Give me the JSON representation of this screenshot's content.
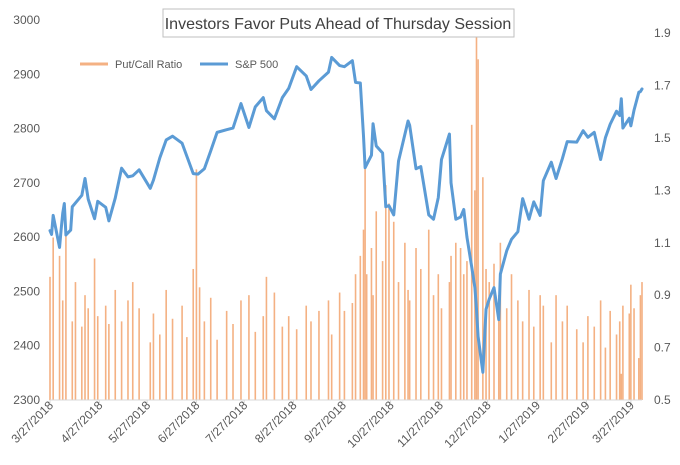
{
  "chart_data": {
    "type": "bar+line",
    "title": "Investors Favor Puts Ahead of Thursday Session",
    "legend": {
      "position": "top-left",
      "items": [
        "Put/Call Ratio",
        "S&P 500"
      ]
    },
    "colors": {
      "ratio_bars": "#F4B183",
      "sp500_line": "#5B9BD5",
      "title_border": "#BFBFBF",
      "text": "#595959"
    },
    "grid": false,
    "x_range": [
      "2018-03-27",
      "2019-04-03"
    ],
    "x_tick_labels": [
      "3/27/2018",
      "4/27/2018",
      "5/27/2018",
      "6/27/2018",
      "7/27/2018",
      "8/27/2018",
      "9/27/2018",
      "10/27/2018",
      "11/27/2018",
      "12/27/2018",
      "1/27/2019",
      "2/27/2019",
      "3/27/2019"
    ],
    "y_left": {
      "series": "S&P 500",
      "range": [
        2300,
        3000
      ],
      "ticks": [
        "2300",
        "2400",
        "2500",
        "2600",
        "2700",
        "2800",
        "2900",
        "3000"
      ]
    },
    "y_right": {
      "series": "Put/Call Ratio",
      "range": [
        0.5,
        1.95
      ],
      "ticks": [
        "0.5",
        "0.7",
        "0.9",
        "1.1",
        "1.3",
        "1.5",
        "1.7",
        "1.9"
      ]
    },
    "series": [
      {
        "name": "S&P 500",
        "type": "line",
        "axis": "left",
        "points": [
          [
            "2018-03-27",
            2612
          ],
          [
            "2018-03-28",
            2605
          ],
          [
            "2018-03-29",
            2640
          ],
          [
            "2018-04-02",
            2581
          ],
          [
            "2018-04-03",
            2614
          ],
          [
            "2018-04-04",
            2644
          ],
          [
            "2018-04-05",
            2662
          ],
          [
            "2018-04-06",
            2604
          ],
          [
            "2018-04-09",
            2613
          ],
          [
            "2018-04-10",
            2656
          ],
          [
            "2018-04-12",
            2663
          ],
          [
            "2018-04-16",
            2677
          ],
          [
            "2018-04-18",
            2708
          ],
          [
            "2018-04-20",
            2670
          ],
          [
            "2018-04-24",
            2634
          ],
          [
            "2018-04-26",
            2666
          ],
          [
            "2018-05-01",
            2655
          ],
          [
            "2018-05-03",
            2630
          ],
          [
            "2018-05-07",
            2672
          ],
          [
            "2018-05-11",
            2727
          ],
          [
            "2018-05-15",
            2711
          ],
          [
            "2018-05-18",
            2713
          ],
          [
            "2018-05-22",
            2724
          ],
          [
            "2018-05-29",
            2690
          ],
          [
            "2018-05-31",
            2705
          ],
          [
            "2018-06-04",
            2746
          ],
          [
            "2018-06-08",
            2779
          ],
          [
            "2018-06-12",
            2786
          ],
          [
            "2018-06-18",
            2773
          ],
          [
            "2018-06-21",
            2749
          ],
          [
            "2018-06-25",
            2717
          ],
          [
            "2018-06-28",
            2716
          ],
          [
            "2018-07-02",
            2726
          ],
          [
            "2018-07-06",
            2759
          ],
          [
            "2018-07-10",
            2793
          ],
          [
            "2018-07-16",
            2798
          ],
          [
            "2018-07-20",
            2801
          ],
          [
            "2018-07-25",
            2846
          ],
          [
            "2018-07-30",
            2802
          ],
          [
            "2018-08-03",
            2840
          ],
          [
            "2018-08-08",
            2857
          ],
          [
            "2018-08-10",
            2833
          ],
          [
            "2018-08-15",
            2818
          ],
          [
            "2018-08-20",
            2857
          ],
          [
            "2018-08-24",
            2874
          ],
          [
            "2018-08-29",
            2914
          ],
          [
            "2018-09-04",
            2897
          ],
          [
            "2018-09-07",
            2872
          ],
          [
            "2018-09-12",
            2888
          ],
          [
            "2018-09-18",
            2904
          ],
          [
            "2018-09-20",
            2931
          ],
          [
            "2018-09-25",
            2916
          ],
          [
            "2018-09-28",
            2914
          ],
          [
            "2018-10-03",
            2925
          ],
          [
            "2018-10-05",
            2885
          ],
          [
            "2018-10-08",
            2884
          ],
          [
            "2018-10-10",
            2786
          ],
          [
            "2018-10-11",
            2728
          ],
          [
            "2018-10-15",
            2751
          ],
          [
            "2018-10-16",
            2809
          ],
          [
            "2018-10-18",
            2768
          ],
          [
            "2018-10-22",
            2755
          ],
          [
            "2018-10-24",
            2656
          ],
          [
            "2018-10-26",
            2658
          ],
          [
            "2018-10-29",
            2641
          ],
          [
            "2018-11-01",
            2740
          ],
          [
            "2018-11-07",
            2814
          ],
          [
            "2018-11-08",
            2806
          ],
          [
            "2018-11-12",
            2726
          ],
          [
            "2018-11-15",
            2730
          ],
          [
            "2018-11-20",
            2641
          ],
          [
            "2018-11-23",
            2633
          ],
          [
            "2018-11-26",
            2673
          ],
          [
            "2018-11-28",
            2743
          ],
          [
            "2018-12-03",
            2790
          ],
          [
            "2018-12-04",
            2700
          ],
          [
            "2018-12-07",
            2633
          ],
          [
            "2018-12-10",
            2637
          ],
          [
            "2018-12-12",
            2651
          ],
          [
            "2018-12-14",
            2600
          ],
          [
            "2018-12-17",
            2545
          ],
          [
            "2018-12-19",
            2507
          ],
          [
            "2018-12-20",
            2467
          ],
          [
            "2018-12-21",
            2417
          ],
          [
            "2018-12-24",
            2351
          ],
          [
            "2018-12-26",
            2467
          ],
          [
            "2018-12-28",
            2486
          ],
          [
            "2018-12-31",
            2507
          ],
          [
            "2019-01-03",
            2448
          ],
          [
            "2019-01-04",
            2532
          ],
          [
            "2019-01-08",
            2575
          ],
          [
            "2019-01-11",
            2596
          ],
          [
            "2019-01-15",
            2610
          ],
          [
            "2019-01-18",
            2671
          ],
          [
            "2019-01-22",
            2633
          ],
          [
            "2019-01-25",
            2665
          ],
          [
            "2019-01-29",
            2640
          ],
          [
            "2019-01-31",
            2704
          ],
          [
            "2019-02-05",
            2738
          ],
          [
            "2019-02-08",
            2708
          ],
          [
            "2019-02-12",
            2745
          ],
          [
            "2019-02-15",
            2776
          ],
          [
            "2019-02-21",
            2775
          ],
          [
            "2019-02-25",
            2796
          ],
          [
            "2019-02-28",
            2784
          ],
          [
            "2019-03-04",
            2793
          ],
          [
            "2019-03-08",
            2743
          ],
          [
            "2019-03-11",
            2783
          ],
          [
            "2019-03-14",
            2808
          ],
          [
            "2019-03-18",
            2832
          ],
          [
            "2019-03-20",
            2824
          ],
          [
            "2019-03-21",
            2855
          ],
          [
            "2019-03-22",
            2801
          ],
          [
            "2019-03-26",
            2819
          ],
          [
            "2019-03-27",
            2805
          ],
          [
            "2019-03-29",
            2834
          ],
          [
            "2019-04-01",
            2867
          ],
          [
            "2019-04-02",
            2868
          ],
          [
            "2019-04-03",
            2873
          ]
        ]
      },
      {
        "name": "Put/Call Ratio",
        "type": "bar",
        "axis": "right",
        "note_values": "daily values, read approximately",
        "points": [
          [
            "2018-03-27",
            0.97
          ],
          [
            "2018-03-29",
            1.12
          ],
          [
            "2018-04-02",
            1.05
          ],
          [
            "2018-04-04",
            0.88
          ],
          [
            "2018-04-06",
            1.15
          ],
          [
            "2018-04-10",
            0.8
          ],
          [
            "2018-04-12",
            0.95
          ],
          [
            "2018-04-16",
            0.78
          ],
          [
            "2018-04-18",
            0.9
          ],
          [
            "2018-04-20",
            0.85
          ],
          [
            "2018-04-24",
            1.04
          ],
          [
            "2018-04-26",
            0.82
          ],
          [
            "2018-05-01",
            0.86
          ],
          [
            "2018-05-03",
            0.79
          ],
          [
            "2018-05-07",
            0.92
          ],
          [
            "2018-05-11",
            0.8
          ],
          [
            "2018-05-15",
            0.88
          ],
          [
            "2018-05-18",
            0.95
          ],
          [
            "2018-05-22",
            0.85
          ],
          [
            "2018-05-29",
            0.72
          ],
          [
            "2018-05-31",
            0.83
          ],
          [
            "2018-06-04",
            0.75
          ],
          [
            "2018-06-08",
            0.92
          ],
          [
            "2018-06-12",
            0.81
          ],
          [
            "2018-06-18",
            0.86
          ],
          [
            "2018-06-21",
            0.74
          ],
          [
            "2018-06-25",
            1.0
          ],
          [
            "2018-06-27",
            1.38
          ],
          [
            "2018-06-29",
            0.93
          ],
          [
            "2018-07-02",
            0.8
          ],
          [
            "2018-07-06",
            0.89
          ],
          [
            "2018-07-10",
            0.73
          ],
          [
            "2018-07-16",
            0.84
          ],
          [
            "2018-07-20",
            0.79
          ],
          [
            "2018-07-25",
            0.88
          ],
          [
            "2018-07-30",
            0.9
          ],
          [
            "2018-08-03",
            0.76
          ],
          [
            "2018-08-08",
            0.82
          ],
          [
            "2018-08-10",
            0.97
          ],
          [
            "2018-08-15",
            0.91
          ],
          [
            "2018-08-20",
            0.78
          ],
          [
            "2018-08-24",
            0.82
          ],
          [
            "2018-08-29",
            0.77
          ],
          [
            "2018-09-04",
            0.86
          ],
          [
            "2018-09-07",
            0.8
          ],
          [
            "2018-09-12",
            0.84
          ],
          [
            "2018-09-18",
            0.88
          ],
          [
            "2018-09-20",
            0.75
          ],
          [
            "2018-09-25",
            0.91
          ],
          [
            "2018-09-28",
            0.84
          ],
          [
            "2018-10-03",
            0.87
          ],
          [
            "2018-10-05",
            0.98
          ],
          [
            "2018-10-08",
            1.05
          ],
          [
            "2018-10-10",
            1.15
          ],
          [
            "2018-10-11",
            1.4
          ],
          [
            "2018-10-12",
            0.98
          ],
          [
            "2018-10-15",
            1.08
          ],
          [
            "2018-10-16",
            0.9
          ],
          [
            "2018-10-18",
            1.22
          ],
          [
            "2018-10-22",
            1.03
          ],
          [
            "2018-10-24",
            1.32
          ],
          [
            "2018-10-26",
            1.25
          ],
          [
            "2018-10-29",
            1.18
          ],
          [
            "2018-11-01",
            0.95
          ],
          [
            "2018-11-05",
            1.1
          ],
          [
            "2018-11-07",
            0.92
          ],
          [
            "2018-11-08",
            0.88
          ],
          [
            "2018-11-12",
            1.08
          ],
          [
            "2018-11-15",
            1.0
          ],
          [
            "2018-11-20",
            1.15
          ],
          [
            "2018-11-23",
            0.9
          ],
          [
            "2018-11-26",
            0.98
          ],
          [
            "2018-11-28",
            0.85
          ],
          [
            "2018-12-03",
            0.95
          ],
          [
            "2018-12-04",
            1.05
          ],
          [
            "2018-12-07",
            1.1
          ],
          [
            "2018-12-10",
            1.08
          ],
          [
            "2018-12-12",
            0.98
          ],
          [
            "2018-12-14",
            1.03
          ],
          [
            "2018-12-17",
            1.55
          ],
          [
            "2018-12-19",
            1.3
          ],
          [
            "2018-12-20",
            1.92
          ],
          [
            "2018-12-21",
            1.8
          ],
          [
            "2018-12-24",
            1.35
          ],
          [
            "2018-12-26",
            1.0
          ],
          [
            "2018-12-28",
            0.95
          ],
          [
            "2018-12-31",
            1.02
          ],
          [
            "2019-01-03",
            0.9
          ],
          [
            "2019-01-04",
            1.1
          ],
          [
            "2019-01-08",
            0.85
          ],
          [
            "2019-01-11",
            0.98
          ],
          [
            "2019-01-15",
            0.88
          ],
          [
            "2019-01-18",
            0.8
          ],
          [
            "2019-01-22",
            0.92
          ],
          [
            "2019-01-25",
            0.78
          ],
          [
            "2019-01-29",
            0.9
          ],
          [
            "2019-01-31",
            0.86
          ],
          [
            "2019-02-05",
            0.72
          ],
          [
            "2019-02-08",
            0.9
          ],
          [
            "2019-02-12",
            0.8
          ],
          [
            "2019-02-15",
            0.86
          ],
          [
            "2019-02-21",
            0.77
          ],
          [
            "2019-02-25",
            0.72
          ],
          [
            "2019-02-28",
            0.82
          ],
          [
            "2019-03-04",
            0.78
          ],
          [
            "2019-03-08",
            0.88
          ],
          [
            "2019-03-11",
            0.7
          ],
          [
            "2019-03-14",
            0.84
          ],
          [
            "2019-03-18",
            0.75
          ],
          [
            "2019-03-20",
            0.8
          ],
          [
            "2019-03-21",
            0.6
          ],
          [
            "2019-03-22",
            0.86
          ],
          [
            "2019-03-26",
            0.83
          ],
          [
            "2019-03-27",
            0.94
          ],
          [
            "2019-03-29",
            0.85
          ],
          [
            "2019-04-01",
            0.66
          ],
          [
            "2019-04-02",
            0.9
          ],
          [
            "2019-04-03",
            0.95
          ]
        ]
      }
    ]
  }
}
